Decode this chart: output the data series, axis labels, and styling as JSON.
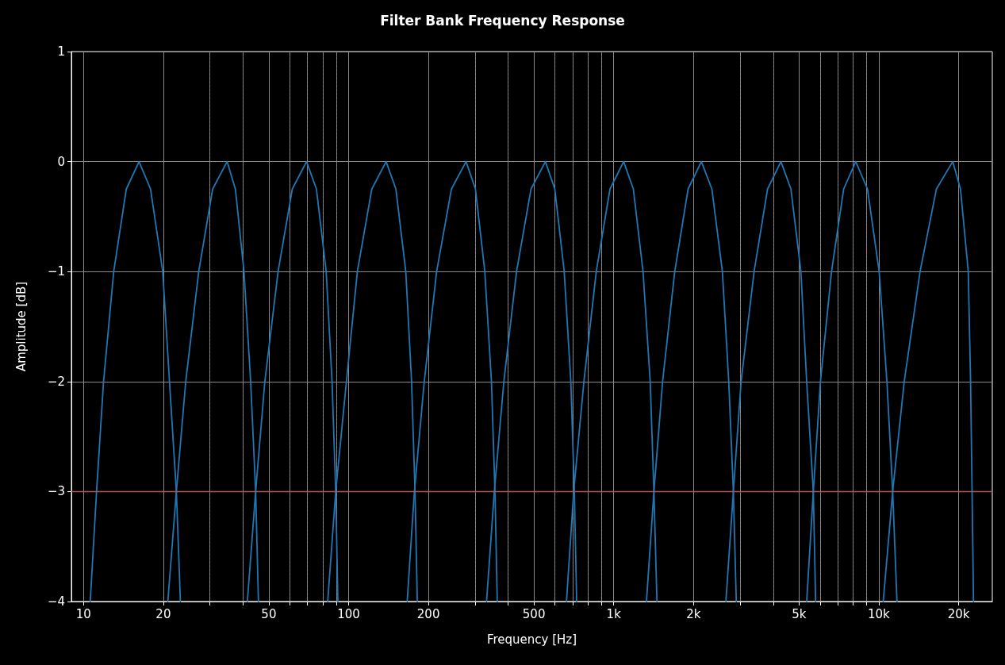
{
  "chart_data": {
    "type": "line",
    "title": "Filter Bank Frequency Response",
    "xlabel": "Frequency [Hz]",
    "ylabel": "Amplitude [dB]",
    "log": "x",
    "grid": true,
    "marker": "none",
    "line_style": "solid",
    "xlim": [
      9,
      26800
    ],
    "ylim": [
      -4,
      1
    ],
    "xticks": [
      10,
      20,
      {
        "value": 30,
        "label": null
      },
      {
        "value": 40,
        "label": null
      },
      50,
      {
        "value": 60,
        "label": null
      },
      {
        "value": 70,
        "label": null
      },
      {
        "value": 80,
        "label": null
      },
      {
        "value": 90,
        "label": null
      },
      100,
      200,
      {
        "value": 300,
        "label": null
      },
      {
        "value": 400,
        "label": null
      },
      500,
      {
        "value": 600,
        "label": null
      },
      {
        "value": 700,
        "label": null
      },
      {
        "value": 800,
        "label": null
      },
      {
        "value": 900,
        "label": null
      },
      {
        "value": 1000,
        "label": "1k"
      },
      {
        "value": 2000,
        "label": "2k"
      },
      {
        "value": 3000,
        "label": null
      },
      {
        "value": 4000,
        "label": null
      },
      {
        "value": 5000,
        "label": "5k"
      },
      {
        "value": 6000,
        "label": null
      },
      {
        "value": 7000,
        "label": null
      },
      {
        "value": 8000,
        "label": null
      },
      {
        "value": 9000,
        "label": null
      },
      {
        "value": 10000,
        "label": "10k"
      },
      {
        "value": 20000,
        "label": "20k"
      }
    ],
    "yticks": [
      {
        "value": -4,
        "label": "−4"
      },
      {
        "value": -3,
        "label": "−3"
      },
      {
        "value": -2,
        "label": "−2"
      },
      {
        "value": -1,
        "label": "−1"
      },
      0,
      1
    ],
    "ref_lines": [
      {
        "axis": "y",
        "value": -3,
        "label": null,
        "color": "#b35454"
      }
    ],
    "series": [
      {
        "color": "#1f77b4",
        "x": [
          10.6,
          11.2,
          11.9,
          13.0,
          14.5,
          16.2,
          17.9,
          19.9,
          21.1,
          22.4,
          23.2
        ],
        "values": [
          -4,
          -3,
          -2,
          -1,
          -0.25,
          0,
          -0.25,
          -1,
          -2,
          -3,
          -4
        ]
      },
      {
        "color": "#1f77b4",
        "x": [
          20.8,
          22.4,
          24.3,
          27.2,
          30.7,
          34.8,
          37.4,
          40.3,
          42.7,
          44.6,
          45.7
        ],
        "values": [
          -4,
          -3,
          -2,
          -1,
          -0.25,
          0,
          -0.25,
          -1,
          -2,
          -3,
          -4
        ]
      },
      {
        "color": "#1f77b4",
        "x": [
          41.5,
          44.6,
          48.3,
          54.2,
          61.3,
          69.4,
          75.6,
          82.3,
          86.6,
          89.4,
          91.1
        ],
        "values": [
          -4,
          -3,
          -2,
          -1,
          -0.25,
          0,
          -0.25,
          -1,
          -2,
          -3,
          -4
        ]
      },
      {
        "color": "#1f77b4",
        "x": [
          83.4,
          89.4,
          98.1,
          107.9,
          122.3,
          138.5,
          150.8,
          164.3,
          172.8,
          178.0,
          181.6
        ],
        "values": [
          -4,
          -3,
          -2,
          -1,
          -0.25,
          0,
          -0.25,
          -1,
          -2,
          -3,
          -4
        ]
      },
      {
        "color": "#1f77b4",
        "x": [
          166.3,
          177.1,
          192.9,
          214.8,
          244.2,
          277.4,
          300.9,
          326.4,
          345.8,
          356.5,
          363.7
        ],
        "values": [
          -4,
          -3,
          -2,
          -1,
          -0.25,
          0,
          -0.25,
          -1,
          -2,
          -3,
          -4
        ]
      },
      {
        "color": "#1f77b4",
        "x": [
          331.4,
          354.5,
          385.1,
          430.0,
          487.5,
          552.6,
          599.5,
          650.5,
          689.0,
          710.4,
          724.8
        ],
        "values": [
          -4,
          -3,
          -2,
          -1,
          -0.25,
          0,
          -0.25,
          -1,
          -2,
          -3,
          -4
        ]
      },
      {
        "color": "#1f77b4",
        "x": [
          663.5,
          706.5,
          771.8,
          859.4,
          968.1,
          1090,
          1186,
          1290,
          1373,
          1418,
          1456
        ],
        "values": [
          -4,
          -3,
          -2,
          -1,
          -0.25,
          0,
          -0.25,
          -1,
          -2,
          -3,
          -4
        ]
      },
      {
        "color": "#1f77b4",
        "x": [
          1329,
          1418,
          1529,
          1699,
          1908,
          2141,
          2346,
          2570,
          2716,
          2827,
          2900
        ],
        "values": [
          -4,
          -3,
          -2,
          -1,
          -0.25,
          0,
          -0.25,
          -1,
          -2,
          -3,
          -4
        ]
      },
      {
        "color": "#1f77b4",
        "x": [
          2650,
          2827,
          3024,
          3385,
          3804,
          4274,
          4662,
          5082,
          5344,
          5662,
          5777
        ],
        "values": [
          -4,
          -3,
          -2,
          -1,
          -0.25,
          0,
          -0.25,
          -1,
          -2,
          -3,
          -4
        ]
      },
      {
        "color": "#1f77b4",
        "x": [
          5344,
          5662,
          6024,
          6632,
          7369,
          8184,
          9064,
          10030,
          10730,
          11280,
          11710
        ],
        "values": [
          -4,
          -3,
          -2,
          -1,
          -0.25,
          0,
          -0.25,
          -1,
          -2,
          -3,
          -4
        ]
      },
      {
        "color": "#1f77b4",
        "x": [
          10390,
          11280,
          12470,
          14310,
          16490,
          19000,
          20330,
          21750,
          22190,
          22480,
          22760
        ],
        "values": [
          -4,
          -3,
          -2,
          -1,
          -0.25,
          0,
          -0.25,
          -1,
          -2,
          -3,
          -4
        ]
      }
    ]
  }
}
